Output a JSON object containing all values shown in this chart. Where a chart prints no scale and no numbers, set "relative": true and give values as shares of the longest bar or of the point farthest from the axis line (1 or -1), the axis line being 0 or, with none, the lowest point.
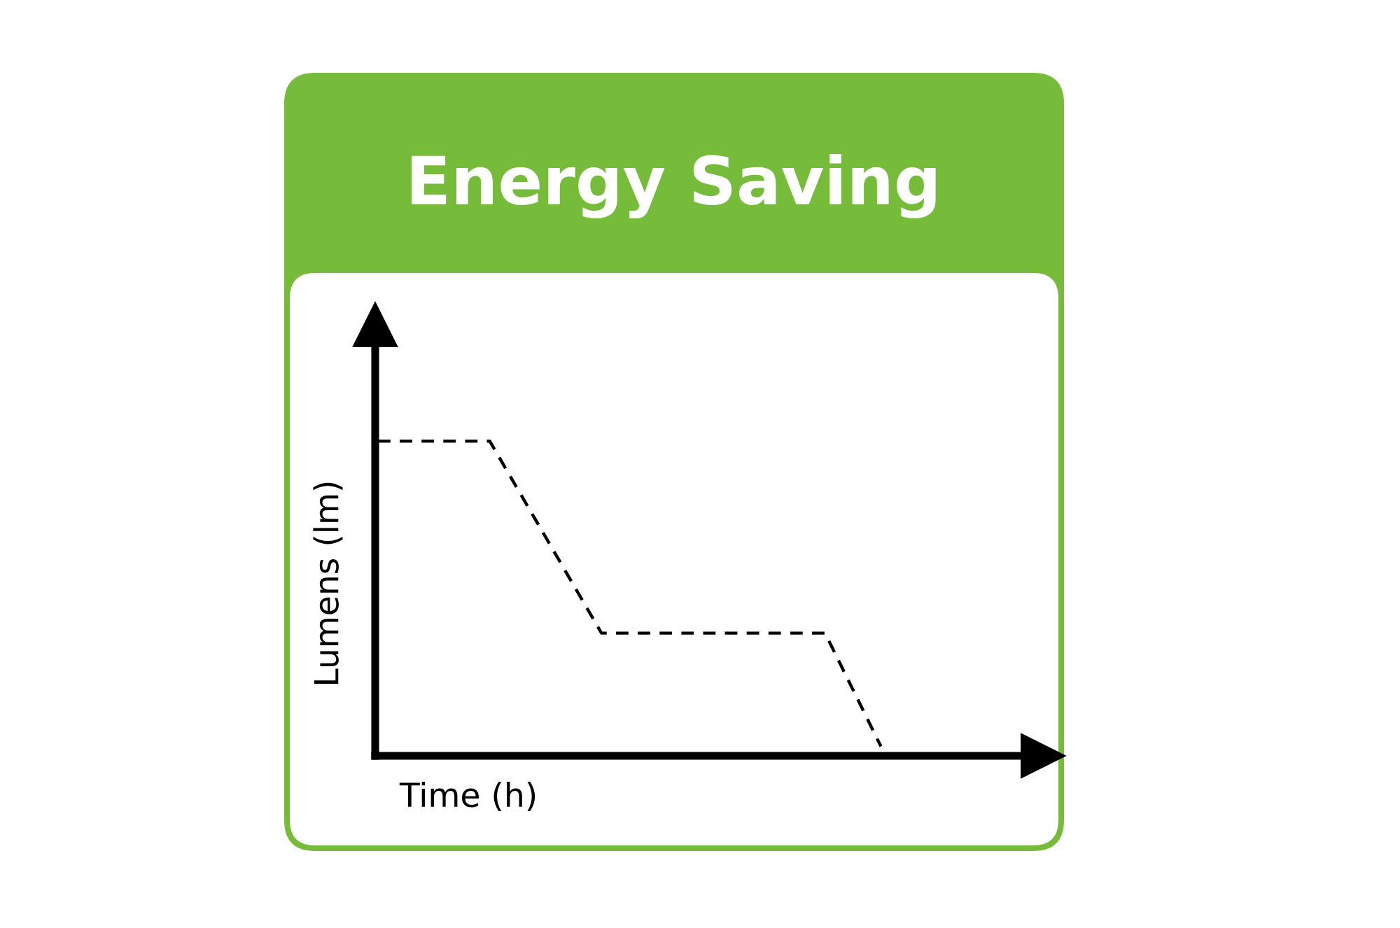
{
  "chart_data": {
    "type": "line",
    "title": "Energy Saving",
    "xlabel": "Time (h)",
    "ylabel": "Lumens (lm)",
    "relative": true,
    "categories": [
      null,
      null,
      null,
      null,
      null,
      null,
      null,
      null,
      null,
      null,
      null,
      null
    ],
    "series": [
      {
        "color": "#000000",
        "values": [
          1,
          null,
          1,
          null,
          0.39,
          null,
          null,
          null,
          0.39,
          0.03,
          null,
          null
        ]
      }
    ],
    "line_style": "dashed",
    "grid": false
  }
}
